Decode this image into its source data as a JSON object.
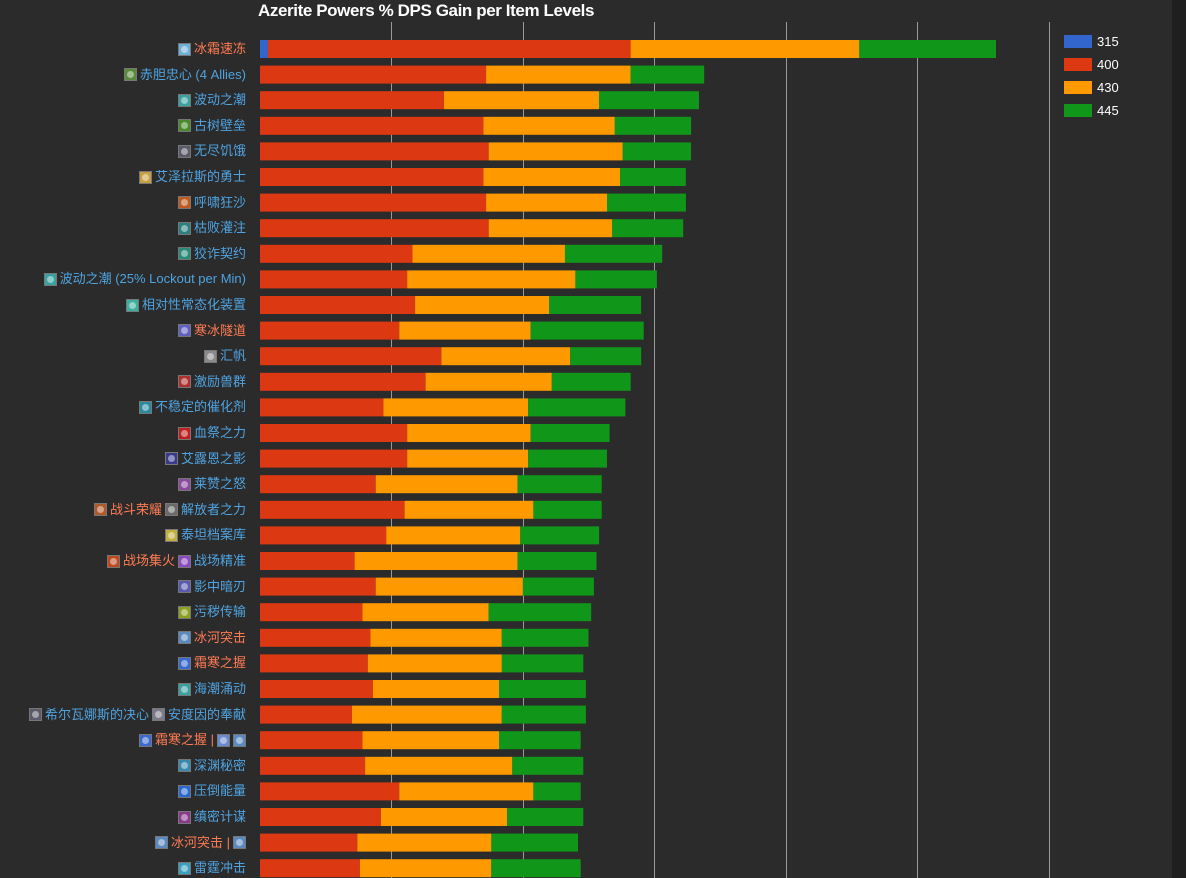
{
  "chart_data": {
    "type": "bar",
    "orientation": "horizontal",
    "stacked": true,
    "title": "Azerite Powers % DPS Gain per Item Levels",
    "xlim": [
      0,
      3.5
    ],
    "legend_position": "top-right",
    "series": [
      {
        "name": "315",
        "color": "#3366cc"
      },
      {
        "name": "400",
        "color": "#dc3912"
      },
      {
        "name": "430",
        "color": "#ff9900"
      },
      {
        "name": "445",
        "color": "#109618"
      }
    ],
    "rows": [
      {
        "segments": [
          {
            "text": "冰霜速冻",
            "color": "#ff7b54",
            "icon": "ice-skull-icon",
            "iconColor": "#6fb0d8"
          }
        ],
        "values": [
          0.03,
          1.38,
          0.87,
          0.52
        ]
      },
      {
        "segments": [
          {
            "text": "赤胆忠心 (4 Allies)",
            "color": "#4fa3e0",
            "icon": "ally-bond-icon",
            "iconColor": "#5a8a3a"
          }
        ],
        "values": [
          0,
          0.86,
          0.55,
          0.28
        ]
      },
      {
        "segments": [
          {
            "text": "波动之潮",
            "color": "#4fa3e0",
            "icon": "tidal-wave-icon",
            "iconColor": "#3aa0a0"
          }
        ],
        "values": [
          0,
          0.7,
          0.59,
          0.38
        ]
      },
      {
        "segments": [
          {
            "text": "古树壁垒",
            "color": "#4fa3e0",
            "icon": "ancient-bark-icon",
            "iconColor": "#4a8a2a"
          }
        ],
        "values": [
          0,
          0.85,
          0.5,
          0.29
        ]
      },
      {
        "segments": [
          {
            "text": "无尽饥饿",
            "color": "#4fa3e0",
            "icon": "endless-hunger-icon",
            "iconColor": "#5a5a6a"
          }
        ],
        "values": [
          0,
          0.87,
          0.51,
          0.26
        ]
      },
      {
        "segments": [
          {
            "text": "艾泽拉斯的勇士",
            "color": "#4fa3e0",
            "icon": "champion-icon",
            "iconColor": "#c8a040"
          }
        ],
        "values": [
          0,
          0.85,
          0.52,
          0.25
        ]
      },
      {
        "segments": [
          {
            "text": "呼啸狂沙",
            "color": "#4fa3e0",
            "icon": "howling-sand-icon",
            "iconColor": "#c05a20"
          }
        ],
        "values": [
          0,
          0.86,
          0.46,
          0.3
        ]
      },
      {
        "segments": [
          {
            "text": "枯败灌注",
            "color": "#4fa3e0",
            "icon": "blight-icon",
            "iconColor": "#2a8080"
          }
        ],
        "values": [
          0,
          0.87,
          0.47,
          0.27
        ]
      },
      {
        "segments": [
          {
            "text": "狡诈契约",
            "color": "#4fa3e0",
            "icon": "pact-icon",
            "iconColor": "#2a8a7a"
          }
        ],
        "values": [
          0,
          0.58,
          0.58,
          0.37
        ]
      },
      {
        "segments": [
          {
            "text": "波动之潮 (25% Lockout per Min)",
            "color": "#4fa3e0",
            "icon": "tidal-wave-icon",
            "iconColor": "#3aa0a0"
          }
        ],
        "values": [
          0,
          0.56,
          0.64,
          0.31
        ]
      },
      {
        "segments": [
          {
            "text": "相对性常态化装置",
            "color": "#4fa3e0",
            "icon": "normalizer-icon",
            "iconColor": "#3ab0a0"
          }
        ],
        "values": [
          0,
          0.59,
          0.51,
          0.35
        ]
      },
      {
        "segments": [
          {
            "text": "寒冰隧道",
            "color": "#ff7b54",
            "icon": "frost-tunnel-icon",
            "iconColor": "#6060c0"
          }
        ],
        "values": [
          0,
          0.53,
          0.5,
          0.43
        ]
      },
      {
        "segments": [
          {
            "text": "汇帆",
            "color": "#4fa3e0",
            "icon": "sail-icon",
            "iconColor": "#8a8a8a"
          }
        ],
        "values": [
          0,
          0.69,
          0.49,
          0.27
        ]
      },
      {
        "segments": [
          {
            "text": "激励兽群",
            "color": "#4fa3e0",
            "icon": "pack-icon",
            "iconColor": "#b03030"
          }
        ],
        "values": [
          0,
          0.63,
          0.48,
          0.3
        ]
      },
      {
        "segments": [
          {
            "text": "不稳定的催化剂",
            "color": "#4fa3e0",
            "icon": "catalyst-icon",
            "iconColor": "#2a8aa0"
          }
        ],
        "values": [
          0,
          0.47,
          0.55,
          0.37
        ]
      },
      {
        "segments": [
          {
            "text": "血祭之力",
            "color": "#4fa3e0",
            "icon": "blood-icon",
            "iconColor": "#c02020"
          }
        ],
        "values": [
          0,
          0.56,
          0.47,
          0.3
        ]
      },
      {
        "segments": [
          {
            "text": "艾露恩之影",
            "color": "#4fa3e0",
            "icon": "moon-icon",
            "iconColor": "#3a3a8a"
          }
        ],
        "values": [
          0,
          0.56,
          0.46,
          0.3
        ]
      },
      {
        "segments": [
          {
            "text": "莱赞之怒",
            "color": "#4fa3e0",
            "icon": "rezan-icon",
            "iconColor": "#8a4aa0"
          }
        ],
        "values": [
          0,
          0.44,
          0.54,
          0.32
        ]
      },
      {
        "segments": [
          {
            "text": "战斗荣耀",
            "color": "#ff7b54",
            "icon": "battle-glory-icon",
            "iconColor": "#b05a2a"
          },
          {
            "text": "解放者之力",
            "color": "#4fa3e0",
            "icon": "liberator-icon",
            "iconColor": "#6a6a6a"
          }
        ],
        "values": [
          0,
          0.55,
          0.49,
          0.26
        ]
      },
      {
        "segments": [
          {
            "text": "泰坦档案库",
            "color": "#4fa3e0",
            "icon": "titan-archive-icon",
            "iconColor": "#c0b040"
          }
        ],
        "values": [
          0,
          0.48,
          0.51,
          0.3
        ]
      },
      {
        "segments": [
          {
            "text": "战场集火",
            "color": "#ff7b54",
            "icon": "focus-fire-icon",
            "iconColor": "#c04a20"
          },
          {
            "text": "战场精准",
            "color": "#4fa3e0",
            "icon": "precision-icon",
            "iconColor": "#8a4ac0"
          }
        ],
        "values": [
          0,
          0.36,
          0.62,
          0.3
        ]
      },
      {
        "segments": [
          {
            "text": "影中暗刃",
            "color": "#4fa3e0",
            "icon": "shadow-blade-icon",
            "iconColor": "#5a5ab0"
          }
        ],
        "values": [
          0,
          0.44,
          0.56,
          0.27
        ]
      },
      {
        "segments": [
          {
            "text": "污秽传输",
            "color": "#4fa3e0",
            "icon": "filthy-transfusion-icon",
            "iconColor": "#8aa020"
          }
        ],
        "values": [
          0,
          0.39,
          0.48,
          0.39
        ]
      },
      {
        "segments": [
          {
            "text": "冰河突击",
            "color": "#ff7b54",
            "icon": "glacial-icon",
            "iconColor": "#5a8ac0"
          }
        ],
        "values": [
          0,
          0.42,
          0.5,
          0.33
        ]
      },
      {
        "segments": [
          {
            "text": "霜寒之握",
            "color": "#ff7b54",
            "icon": "frost-grip-icon",
            "iconColor": "#3a6ad0"
          }
        ],
        "values": [
          0,
          0.41,
          0.51,
          0.31
        ]
      },
      {
        "segments": [
          {
            "text": "海潮涌动",
            "color": "#4fa3e0",
            "icon": "tide-surge-icon",
            "iconColor": "#3aa0a0"
          }
        ],
        "values": [
          0,
          0.43,
          0.48,
          0.33
        ]
      },
      {
        "segments": [
          {
            "text": "希尔瓦娜斯的决心",
            "color": "#4fa3e0",
            "icon": "sylvanas-icon",
            "iconColor": "#5a5a6a"
          },
          {
            "text": "安度因的奉献",
            "color": "#4fa3e0",
            "icon": "anduin-icon",
            "iconColor": "#7a7a8a"
          }
        ],
        "values": [
          0,
          0.35,
          0.57,
          0.32
        ]
      },
      {
        "segments": [
          {
            "text": "霜寒之握 |",
            "color": "#ff7b54",
            "icon": "frost-grip-icon",
            "iconColor": "#3a6ad0"
          },
          {
            "text": "",
            "color": "#4fa3e0",
            "icon": "frost-rune-icon",
            "iconColor": "#6a8ad0"
          },
          {
            "text": "",
            "color": "#4fa3e0",
            "icon": "glacial-icon",
            "iconColor": "#5a8ac0"
          }
        ],
        "values": [
          0,
          0.39,
          0.52,
          0.31
        ]
      },
      {
        "segments": [
          {
            "text": "深渊秘密",
            "color": "#4fa3e0",
            "icon": "abyss-icon",
            "iconColor": "#3a8ab0"
          }
        ],
        "values": [
          0,
          0.4,
          0.56,
          0.27
        ]
      },
      {
        "segments": [
          {
            "text": "压倒能量",
            "color": "#4fa3e0",
            "icon": "overwhelming-power-icon",
            "iconColor": "#2a6ad0"
          }
        ],
        "values": [
          0,
          0.53,
          0.51,
          0.18
        ]
      },
      {
        "segments": [
          {
            "text": "缜密计谋",
            "color": "#4fa3e0",
            "icon": "scheme-icon",
            "iconColor": "#8a3a8a"
          }
        ],
        "values": [
          0,
          0.46,
          0.48,
          0.29
        ]
      },
      {
        "segments": [
          {
            "text": "冰河突击 |",
            "color": "#ff7b54",
            "icon": "glacial-icon",
            "iconColor": "#5a8ac0"
          },
          {
            "text": "",
            "color": "#4fa3e0",
            "icon": "glacial-icon",
            "iconColor": "#5a8ac0"
          }
        ],
        "values": [
          0,
          0.37,
          0.51,
          0.33
        ]
      },
      {
        "segments": [
          {
            "text": "雷霆冲击",
            "color": "#4fa3e0",
            "icon": "thunder-icon",
            "iconColor": "#3aa0c0"
          }
        ],
        "values": [
          0,
          0.38,
          0.5,
          0.34
        ]
      }
    ]
  }
}
